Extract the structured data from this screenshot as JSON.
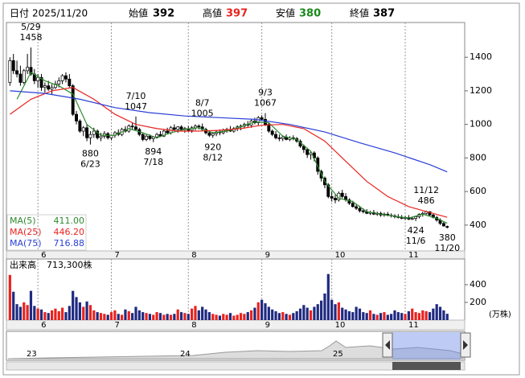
{
  "header": {
    "date_label": "日付",
    "date": "2025/11/20",
    "open_label": "始値",
    "open": 392,
    "high_label": "高値",
    "high": 397,
    "low_label": "安値",
    "low": 380,
    "close_label": "終値",
    "close": 387
  },
  "chart_data": [
    {
      "type": "candlestick",
      "up_color": "#ffffff",
      "down_color": "#000000",
      "grid": true,
      "xlim": [
        -1,
        130
      ],
      "ylim": [
        246,
        1607
      ],
      "yticks": [
        400,
        600,
        800,
        1000,
        1200,
        1400
      ],
      "xticks": [
        {
          "value": 8,
          "label": "6"
        },
        {
          "value": 29,
          "label": "7"
        },
        {
          "value": 51,
          "label": "8"
        },
        {
          "value": 72,
          "label": "9"
        },
        {
          "value": 92,
          "label": "10"
        },
        {
          "value": 113,
          "label": "11"
        }
      ],
      "ohlc": [
        [
          1250,
          1400,
          1230,
          1380
        ],
        [
          1380,
          1420,
          1300,
          1320
        ],
        [
          1320,
          1380,
          1280,
          1300
        ],
        [
          1300,
          1350,
          1230,
          1250
        ],
        [
          1250,
          1330,
          1240,
          1320
        ],
        [
          1320,
          1420,
          1300,
          1340
        ],
        [
          1340,
          1458,
          1290,
          1300
        ],
        [
          1300,
          1330,
          1240,
          1260
        ],
        [
          1260,
          1300,
          1220,
          1280
        ],
        [
          1280,
          1300,
          1200,
          1220
        ],
        [
          1220,
          1250,
          1190,
          1230
        ],
        [
          1230,
          1260,
          1200,
          1210
        ],
        [
          1210,
          1240,
          1180,
          1220
        ],
        [
          1220,
          1260,
          1210,
          1240
        ],
        [
          1240,
          1280,
          1220,
          1260
        ],
        [
          1260,
          1300,
          1240,
          1290
        ],
        [
          1290,
          1310,
          1250,
          1270
        ],
        [
          1270,
          1300,
          1220,
          1230
        ],
        [
          1230,
          1240,
          1050,
          1060
        ],
        [
          1060,
          1080,
          1000,
          1020
        ],
        [
          1020,
          1030,
          950,
          960
        ],
        [
          960,
          990,
          930,
          980
        ],
        [
          980,
          1000,
          900,
          920
        ],
        [
          920,
          960,
          880,
          940
        ],
        [
          940,
          980,
          920,
          960
        ],
        [
          960,
          970,
          910,
          920
        ],
        [
          920,
          950,
          900,
          930
        ],
        [
          930,
          960,
          915,
          945
        ],
        [
          945,
          955,
          910,
          920
        ],
        [
          920,
          940,
          905,
          935
        ],
        [
          935,
          960,
          920,
          950
        ],
        [
          950,
          970,
          930,
          940
        ],
        [
          940,
          980,
          930,
          970
        ],
        [
          970,
          990,
          950,
          960
        ],
        [
          960,
          1000,
          950,
          990
        ],
        [
          990,
          1010,
          970,
          985
        ],
        [
          985,
          1047,
          960,
          970
        ],
        [
          970,
          980,
          930,
          940
        ],
        [
          940,
          950,
          900,
          910
        ],
        [
          910,
          940,
          900,
          930
        ],
        [
          930,
          940,
          905,
          915
        ],
        [
          915,
          930,
          894,
          925
        ],
        [
          925,
          950,
          915,
          940
        ],
        [
          940,
          960,
          925,
          930
        ],
        [
          930,
          970,
          925,
          960
        ],
        [
          960,
          980,
          945,
          950
        ],
        [
          950,
          990,
          940,
          980
        ],
        [
          980,
          1000,
          960,
          970
        ],
        [
          970,
          990,
          950,
          985
        ],
        [
          985,
          995,
          960,
          970
        ],
        [
          970,
          985,
          950,
          975
        ],
        [
          975,
          990,
          955,
          965
        ],
        [
          965,
          990,
          950,
          980
        ],
        [
          980,
          1000,
          965,
          990
        ],
        [
          990,
          1000,
          970,
          985
        ],
        [
          985,
          1005,
          960,
          970
        ],
        [
          970,
          980,
          940,
          950
        ],
        [
          950,
          960,
          925,
          935
        ],
        [
          935,
          955,
          920,
          945
        ],
        [
          945,
          965,
          930,
          955
        ],
        [
          955,
          970,
          935,
          950
        ],
        [
          950,
          975,
          940,
          965
        ],
        [
          965,
          980,
          950,
          970
        ],
        [
          970,
          990,
          955,
          960
        ],
        [
          960,
          985,
          950,
          975
        ],
        [
          975,
          995,
          960,
          985
        ],
        [
          985,
          1000,
          965,
          990
        ],
        [
          990,
          1010,
          975,
          1000
        ],
        [
          1000,
          1020,
          985,
          995
        ],
        [
          995,
          1030,
          980,
          1020
        ],
        [
          1020,
          1040,
          1000,
          1010
        ],
        [
          1010,
          1050,
          995,
          1040
        ],
        [
          1040,
          1055,
          1020,
          1030
        ],
        [
          1030,
          1067,
          990,
          1000
        ],
        [
          1000,
          1010,
          950,
          960
        ],
        [
          960,
          970,
          930,
          940
        ],
        [
          940,
          960,
          910,
          920
        ],
        [
          920,
          940,
          900,
          915
        ],
        [
          915,
          935,
          900,
          925
        ],
        [
          925,
          940,
          905,
          910
        ],
        [
          910,
          930,
          900,
          920
        ],
        [
          920,
          935,
          905,
          915
        ],
        [
          915,
          925,
          890,
          900
        ],
        [
          900,
          910,
          860,
          870
        ],
        [
          870,
          880,
          830,
          850
        ],
        [
          850,
          860,
          800,
          820
        ],
        [
          820,
          840,
          790,
          830
        ],
        [
          830,
          840,
          780,
          800
        ],
        [
          800,
          810,
          700,
          720
        ],
        [
          720,
          730,
          660,
          680
        ],
        [
          680,
          690,
          620,
          640
        ],
        [
          640,
          650,
          560,
          570
        ],
        [
          570,
          600,
          540,
          560
        ],
        [
          560,
          580,
          530,
          550
        ],
        [
          550,
          600,
          540,
          590
        ],
        [
          590,
          610,
          560,
          570
        ],
        [
          570,
          590,
          540,
          550
        ],
        [
          550,
          560,
          520,
          530
        ],
        [
          530,
          545,
          505,
          510
        ],
        [
          510,
          525,
          490,
          500
        ],
        [
          500,
          515,
          475,
          485
        ],
        [
          485,
          500,
          470,
          480
        ],
        [
          480,
          495,
          465,
          470
        ],
        [
          470,
          485,
          460,
          475
        ],
        [
          475,
          490,
          460,
          465
        ],
        [
          465,
          480,
          455,
          470
        ],
        [
          470,
          480,
          450,
          460
        ],
        [
          460,
          475,
          450,
          465
        ],
        [
          465,
          478,
          452,
          458
        ],
        [
          458,
          470,
          445,
          455
        ],
        [
          455,
          465,
          440,
          450
        ],
        [
          450,
          465,
          440,
          445
        ],
        [
          445,
          460,
          435,
          440
        ],
        [
          440,
          455,
          430,
          445
        ],
        [
          445,
          460,
          430,
          435
        ],
        [
          435,
          450,
          430,
          440
        ],
        [
          440,
          455,
          424,
          450
        ],
        [
          450,
          470,
          440,
          465
        ],
        [
          465,
          480,
          450,
          470
        ],
        [
          470,
          486,
          460,
          480
        ],
        [
          480,
          482,
          455,
          460
        ],
        [
          460,
          470,
          440,
          445
        ],
        [
          445,
          455,
          420,
          430
        ],
        [
          430,
          440,
          400,
          410
        ],
        [
          410,
          420,
          390,
          395
        ],
        [
          392,
          397,
          380,
          387
        ]
      ],
      "annotations": [
        {
          "date": "5/29",
          "value": 1458,
          "index": 6,
          "side": "above"
        },
        {
          "date": "6/23",
          "value": 880,
          "index": 23,
          "side": "below"
        },
        {
          "date": "7/10",
          "value": 1047,
          "index": 36,
          "side": "above"
        },
        {
          "date": "7/18",
          "value": 894,
          "index": 41,
          "side": "below"
        },
        {
          "date": "8/7",
          "value": 1005,
          "index": 55,
          "side": "above"
        },
        {
          "date": "8/12",
          "value": 920,
          "index": 58,
          "side": "below"
        },
        {
          "date": "9/3",
          "value": 1067,
          "index": 73,
          "side": "above"
        },
        {
          "date": "11/6",
          "value": 424,
          "index": 116,
          "side": "below"
        },
        {
          "date": "11/12",
          "value": 486,
          "index": 119,
          "side": "above"
        },
        {
          "date": "11/20",
          "value": 380,
          "index": 125,
          "side": "below"
        }
      ],
      "ma": [
        {
          "name": "MA(5)",
          "color": "#2e8b2e",
          "last": {
            "value": 411,
            "label": "411.00"
          },
          "x": [
            2,
            6,
            10,
            14,
            18,
            22,
            26,
            30,
            34,
            38,
            42,
            46,
            50,
            54,
            58,
            62,
            66,
            70,
            74,
            78,
            82,
            86,
            90,
            94,
            98,
            102,
            106,
            110,
            114,
            118,
            122,
            125
          ],
          "values": [
            1150,
            1310,
            1260,
            1230,
            1180,
            1000,
            935,
            935,
            975,
            950,
            920,
            950,
            970,
            980,
            950,
            960,
            985,
            1015,
            1010,
            930,
            910,
            840,
            660,
            560,
            540,
            480,
            465,
            452,
            442,
            465,
            440,
            411
          ]
        },
        {
          "name": "MA(25)",
          "color": "#e8231e",
          "last": {
            "value": 446.2,
            "label": "446.20"
          },
          "x": [
            0,
            6,
            12,
            18,
            24,
            30,
            36,
            42,
            48,
            54,
            60,
            66,
            72,
            78,
            84,
            90,
            96,
            102,
            108,
            114,
            120,
            125
          ],
          "values": [
            1060,
            1150,
            1200,
            1220,
            1150,
            1060,
            1000,
            975,
            960,
            960,
            965,
            975,
            995,
            1000,
            975,
            900,
            780,
            660,
            570,
            510,
            475,
            446.2
          ]
        },
        {
          "name": "MA(75)",
          "color": "#2a3fd6",
          "last": {
            "value": 716.88,
            "label": "716.88"
          },
          "x": [
            0,
            10,
            20,
            30,
            40,
            50,
            60,
            70,
            80,
            90,
            100,
            110,
            120,
            125
          ],
          "values": [
            1200,
            1185,
            1150,
            1100,
            1070,
            1050,
            1040,
            1030,
            1000,
            955,
            890,
            830,
            760,
            716.88
          ]
        }
      ]
    },
    {
      "type": "bar",
      "title": "出来高",
      "last": {
        "value": 71.33,
        "label": "713,300株"
      },
      "unit": "(万株)",
      "up_color": "#e8231e",
      "down_color": "#1f2a80",
      "xlim": [
        -1,
        130
      ],
      "ylim": [
        0,
        690
      ],
      "yticks": [
        200,
        400
      ],
      "values": [
        510,
        320,
        180,
        150,
        200,
        170,
        330,
        160,
        130,
        120,
        90,
        80,
        110,
        130,
        100,
        140,
        90,
        160,
        330,
        260,
        200,
        150,
        210,
        170,
        110,
        90,
        80,
        70,
        60,
        90,
        110,
        70,
        60,
        120,
        100,
        80,
        150,
        110,
        90,
        80,
        70,
        60,
        90,
        80,
        60,
        70,
        60,
        70,
        120,
        90,
        80,
        70,
        130,
        160,
        110,
        150,
        120,
        90,
        70,
        60,
        50,
        70,
        60,
        80,
        50,
        60,
        80,
        70,
        90,
        110,
        140,
        200,
        230,
        190,
        150,
        120,
        100,
        80,
        90,
        70,
        60,
        80,
        100,
        130,
        170,
        140,
        110,
        150,
        180,
        220,
        300,
        520,
        230,
        180,
        200,
        140,
        120,
        100,
        90,
        150,
        130,
        90,
        80,
        110,
        70,
        60,
        80,
        90,
        60,
        70,
        110,
        90,
        80,
        70,
        100,
        130,
        90,
        80,
        110,
        100,
        90,
        130,
        180,
        150,
        110,
        71.33
      ]
    }
  ],
  "navigator": {
    "labels": [
      "23",
      "24",
      "25"
    ]
  }
}
